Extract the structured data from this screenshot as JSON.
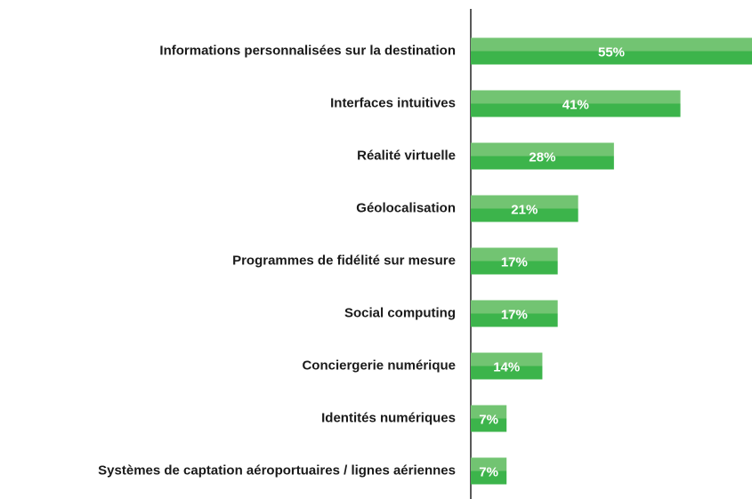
{
  "chart_data": {
    "type": "bar",
    "orientation": "horizontal",
    "categories": [
      "Informations personnalisées sur la destination",
      "Interfaces intuitives",
      "Réalité virtuelle",
      "Géolocalisation",
      "Programmes de fidélité sur mesure",
      "Social computing",
      "Conciergerie numérique",
      "Identités numériques",
      "Systèmes de captation aéroportuaires / lignes aériennes"
    ],
    "values": [
      55,
      41,
      28,
      21,
      17,
      17,
      14,
      7,
      7
    ],
    "value_labels": [
      "55%",
      "41%",
      "28%",
      "21%",
      "17%",
      "17%",
      "14%",
      "7%",
      "7%"
    ],
    "color": "#3cb44b"
  }
}
